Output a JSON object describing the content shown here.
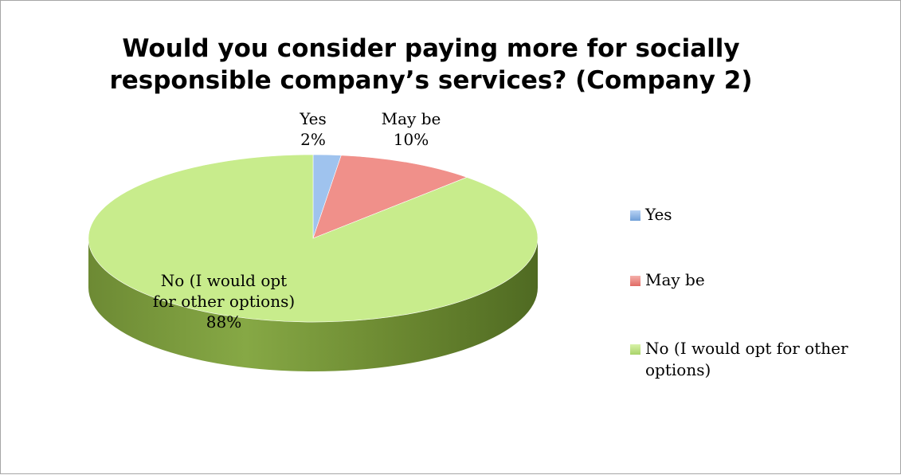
{
  "chart_data": {
    "type": "pie",
    "title_lines": [
      "Would you consider paying more for socially",
      "responsible company’s services? (Company 2)"
    ],
    "slices": [
      {
        "label": "Yes",
        "value": 2,
        "value_label": "2%",
        "color": "#4f81bd",
        "color_light": "#9fc3ee"
      },
      {
        "label": "May be",
        "value": 10,
        "value_label": "10%",
        "color": "#c0504d",
        "color_light": "#f0908a"
      },
      {
        "label": "No (I would opt for other options)",
        "value": 88,
        "value_label": "88%",
        "color": "#9bbb59",
        "color_light": "#c8ec8c"
      }
    ],
    "data_labels": [
      {
        "lines": [
          "Yes",
          "2%"
        ]
      },
      {
        "lines": [
          "May be",
          "10%"
        ]
      },
      {
        "lines": [
          "No (I would opt",
          "for other options)",
          "88%"
        ]
      }
    ],
    "legend": {
      "position": "right",
      "items": [
        {
          "lines": [
            "Yes"
          ]
        },
        {
          "lines": [
            "May be"
          ]
        },
        {
          "lines": [
            "No (I would opt for other",
            "options)"
          ]
        }
      ]
    }
  }
}
